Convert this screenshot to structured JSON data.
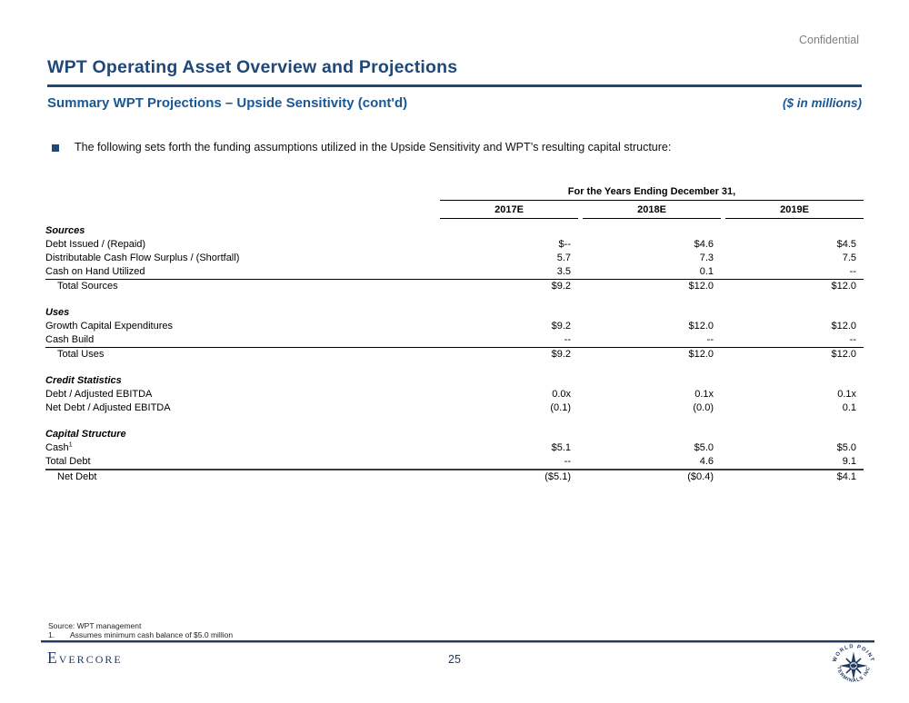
{
  "slide": {
    "confidential_label": "Confidential",
    "title": "WPT Operating Asset Overview and Projections",
    "subtitle": "Summary WPT Projections – Upside Sensitivity (cont'd)",
    "units_label": "($ in millions)",
    "bullet_text": "The following sets forth the funding assumptions utilized in the Upside Sensitivity and WPT’s resulting capital structure:"
  },
  "table": {
    "group_header": "For the Years Ending December 31,",
    "columns": [
      "2017E",
      "2018E",
      "2019E"
    ],
    "rows": [
      {
        "type": "section",
        "label": "Sources"
      },
      {
        "type": "item",
        "label": "Debt Issued / (Repaid)",
        "values": [
          "$--",
          "$4.6",
          "$4.5"
        ]
      },
      {
        "type": "item",
        "label": "Distributable Cash Flow Surplus / (Shortfall)",
        "values": [
          "5.7",
          "7.3",
          "7.5"
        ]
      },
      {
        "type": "item",
        "label": "Cash on Hand Utilized",
        "values": [
          "3.5",
          "0.1",
          "--"
        ],
        "border_bottom": "thin"
      },
      {
        "type": "total",
        "label": "Total Sources",
        "values": [
          "$9.2",
          "$12.0",
          "$12.0"
        ]
      },
      {
        "type": "spacer"
      },
      {
        "type": "section",
        "label": "Uses"
      },
      {
        "type": "item",
        "label": "Growth Capital Expenditures",
        "values": [
          "$9.2",
          "$12.0",
          "$12.0"
        ]
      },
      {
        "type": "item",
        "label": "Cash Build",
        "values": [
          "--",
          "--",
          "--"
        ],
        "border_bottom": "thin"
      },
      {
        "type": "total",
        "label": "Total Uses",
        "values": [
          "$9.2",
          "$12.0",
          "$12.0"
        ]
      },
      {
        "type": "spacer"
      },
      {
        "type": "section",
        "label": "Credit Statistics"
      },
      {
        "type": "item",
        "label": "Debt / Adjusted EBITDA",
        "values": [
          "0.0x",
          "0.1x",
          "0.1x"
        ]
      },
      {
        "type": "item",
        "label": "Net Debt / Adjusted EBITDA",
        "values": [
          "(0.1)",
          "(0.0)",
          "0.1"
        ]
      },
      {
        "type": "spacer"
      },
      {
        "type": "section",
        "label": "Capital Structure"
      },
      {
        "type": "item",
        "label": "Cash",
        "label_sup": "1",
        "values": [
          "$5.1",
          "$5.0",
          "$5.0"
        ]
      },
      {
        "type": "item",
        "label": "Total Debt",
        "values": [
          "--",
          "4.6",
          "9.1"
        ],
        "border_bottom": "thick"
      },
      {
        "type": "total",
        "label": "Net Debt",
        "values": [
          "($5.1)",
          "($0.4)",
          "$4.1"
        ]
      }
    ]
  },
  "footer": {
    "source_note": "Source: WPT management",
    "footnote_number": "1.",
    "footnote_text": "Assumes minimum cash balance of $5.0 million",
    "brand": "Evercore",
    "page_number": "25",
    "logo_text_top": "WORLD POINT",
    "logo_text_bottom": "TERMINALS INC"
  },
  "colors": {
    "title_navy": "#1F4878",
    "subtitle_blue": "#1A5796",
    "footer_navy": "#203A60",
    "confidential_gray": "#7f7f7f"
  }
}
